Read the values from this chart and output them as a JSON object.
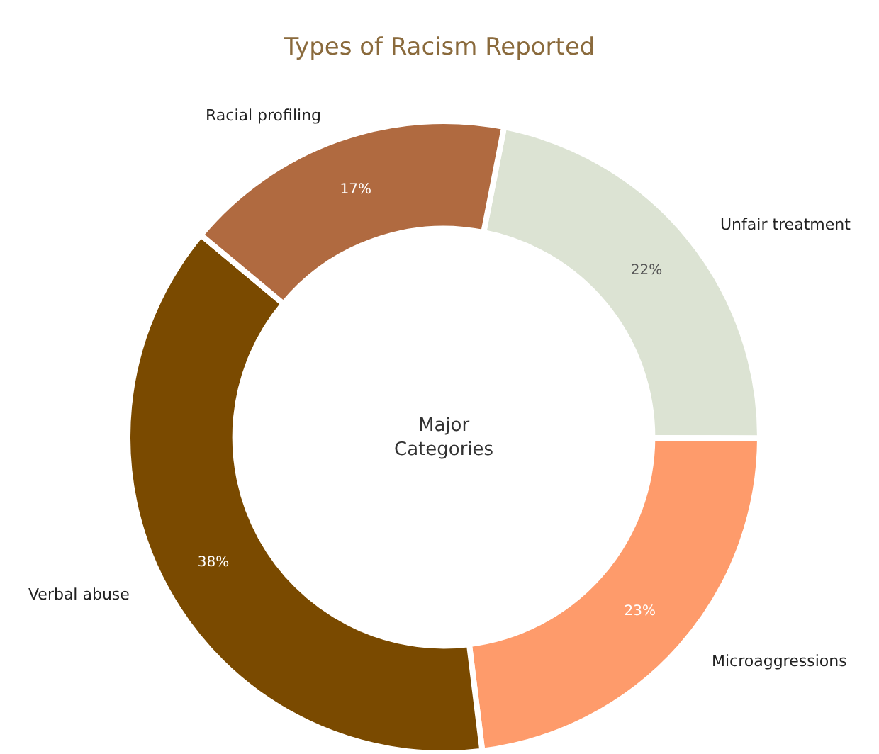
{
  "chart_data": {
    "type": "donut",
    "title": "Types of Racism Reported",
    "categories": [
      "Unfair treatment",
      "Microaggressions",
      "Verbal abuse",
      "Racial profiling"
    ],
    "values": [
      22,
      23,
      38,
      17
    ],
    "value_labels": [
      "22%",
      "23%",
      "38%",
      "17%"
    ],
    "colors": [
      "#dce3d3",
      "#fe9b6b",
      "#7a4a00",
      "#b06a40"
    ],
    "annotations": [
      "Major\nCategories"
    ],
    "legend": false
  }
}
